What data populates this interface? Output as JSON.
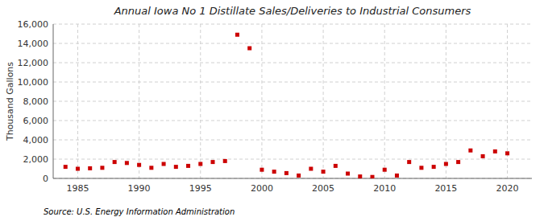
{
  "chart_data": {
    "type": "scatter",
    "title": "Annual Iowa No 1 Distillate Sales/Deliveries to Industrial Consumers",
    "y_label": "Thousand Gallons",
    "source": "Source: U.S. Energy Information Administration",
    "color": "#cc0000",
    "marker": "square",
    "grid": true,
    "x": [
      1984,
      1985,
      1986,
      1987,
      1988,
      1989,
      1990,
      1991,
      1992,
      1993,
      1994,
      1995,
      1996,
      1997,
      1998,
      1999,
      2000,
      2001,
      2002,
      2003,
      2004,
      2005,
      2006,
      2007,
      2008,
      2009,
      2010,
      2011,
      2012,
      2013,
      2014,
      2015,
      2016,
      2017,
      2018,
      2019,
      2020
    ],
    "values": [
      1200,
      1000,
      1050,
      1100,
      1700,
      1600,
      1400,
      1100,
      1500,
      1200,
      1300,
      1500,
      1700,
      1800,
      14900,
      13500,
      900,
      700,
      550,
      300,
      1000,
      700,
      1300,
      500,
      200,
      150,
      900,
      300,
      1700,
      1100,
      1200,
      1500,
      1700,
      2900,
      2300,
      2800,
      2600
    ],
    "xlim": [
      1983,
      2022
    ],
    "ylim": [
      0,
      16000
    ],
    "xticks": [
      1985,
      1990,
      1995,
      2000,
      2005,
      2010,
      2015,
      2020
    ],
    "yticks": [
      0,
      {
        "value": 2000,
        "label": "2,000"
      },
      {
        "value": 4000,
        "label": "4,000"
      },
      {
        "value": 6000,
        "label": "6,000"
      },
      {
        "value": 8000,
        "label": "8,000"
      },
      {
        "value": 10000,
        "label": "10,000"
      },
      {
        "value": 12000,
        "label": "12,000"
      },
      {
        "value": 14000,
        "label": "14,000"
      },
      {
        "value": 16000,
        "label": "16,000"
      }
    ]
  }
}
